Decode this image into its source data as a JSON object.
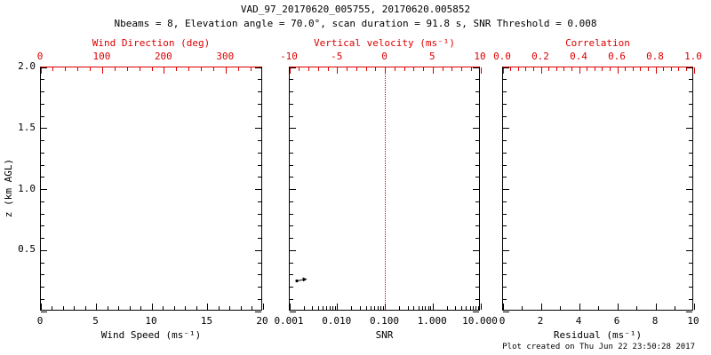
{
  "colors": {
    "primary_axis": "#000000",
    "secondary_axis": "#dd0000",
    "background": "#ffffff",
    "marker": "#000000"
  },
  "chart_data": {
    "type": "scatter",
    "title": "VAD_97_20170620_005755, 20170620.005852",
    "subtitle": "Nbeams = 8, Elevation angle = 70.0°, scan duration = 91.8 s, SNR Threshold = 0.008",
    "footer": "Plot created on Thu Jun 22 23:50:28 2017",
    "y_axis": {
      "label": "z (km AGL)",
      "min": 0,
      "max": 2,
      "ticks": [
        0,
        0.5,
        1,
        1.5,
        2
      ],
      "tick_labels": [
        "",
        "0.5",
        "1.0",
        "1.5",
        "2.0"
      ],
      "minor_step": 0.1
    },
    "panels": [
      {
        "id": "wind-speed",
        "top_axis": {
          "label": "Wind Direction (deg)",
          "scale": "linear",
          "min": 0,
          "max": 360,
          "ticks": [
            0,
            100,
            200,
            300
          ],
          "tick_labels": [
            "0",
            "100",
            "200",
            "300"
          ]
        },
        "bottom_axis": {
          "label": "Wind Speed (ms⁻¹)",
          "scale": "linear",
          "min": 0,
          "max": 20,
          "ticks": [
            0,
            5,
            10,
            15,
            20
          ],
          "tick_labels": [
            "0",
            "5",
            "10",
            "15",
            "20"
          ]
        },
        "points": []
      },
      {
        "id": "snr",
        "top_axis": {
          "label": "Vertical velocity (ms⁻¹)",
          "scale": "linear",
          "min": -10,
          "max": 10,
          "ticks": [
            -10,
            -5,
            0,
            5,
            10
          ],
          "tick_labels": [
            "-10",
            "-5",
            "0",
            "5",
            "10"
          ]
        },
        "bottom_axis": {
          "label": "SNR",
          "scale": "log",
          "min": 0.001,
          "max": 10,
          "ticks": [
            0.001,
            0.01,
            0.1,
            1,
            10
          ],
          "tick_labels": [
            "0.001",
            "0.010",
            "0.100",
            "1.000",
            "10.000"
          ]
        },
        "reference_line": {
          "axis": "top",
          "value": 0,
          "style": "dotted"
        },
        "points": [
          {
            "snr": 0.0015,
            "z": 0.25,
            "marker": "arrow-dot"
          }
        ]
      },
      {
        "id": "residual",
        "top_axis": {
          "label": "Correlation",
          "scale": "linear",
          "min": 0,
          "max": 1,
          "ticks": [
            0,
            0.2,
            0.4,
            0.6,
            0.8,
            1
          ],
          "tick_labels": [
            "0.0",
            "0.2",
            "0.4",
            "0.6",
            "0.8",
            "1.0"
          ]
        },
        "bottom_axis": {
          "label": "Residual (ms⁻¹)",
          "scale": "linear",
          "min": 0,
          "max": 10,
          "ticks": [
            0,
            2,
            4,
            6,
            8,
            10
          ],
          "tick_labels": [
            "0",
            "2",
            "4",
            "6",
            "8",
            "10"
          ]
        },
        "points": []
      }
    ]
  }
}
